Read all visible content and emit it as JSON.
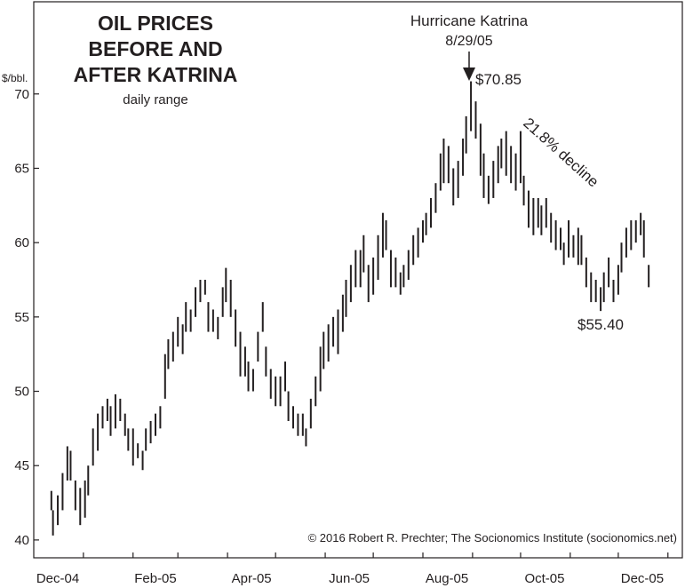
{
  "chart_data": {
    "type": "range",
    "title": [
      "OIL PRICES",
      "BEFORE AND",
      "AFTER KATRINA"
    ],
    "subtitle": "daily range",
    "y_label": "$/bbl.",
    "annotations": {
      "event": "Hurricane Katrina",
      "event_date": "8/29/05",
      "peak": "$70.85",
      "trough": "$55.40",
      "decline": "21.8% decline"
    },
    "credit": "© 2016 Robert R. Prechter; The Socionomics Institute (socionomics.net)",
    "color": "#231f20",
    "xlim": [
      0,
      405
    ],
    "ylim": [
      38.8,
      76.2
    ],
    "yticks": [
      40,
      45,
      50,
      55,
      60,
      65,
      70
    ],
    "xticks": [
      {
        "value": 15,
        "label": "Dec-04"
      },
      {
        "value": 76,
        "label": "Feb-05"
      },
      {
        "value": 136,
        "label": "Apr-05"
      },
      {
        "value": 197,
        "label": "Jun-05"
      },
      {
        "value": 258,
        "label": "Aug-05"
      },
      {
        "value": 319,
        "label": "Oct-05"
      },
      {
        "value": 380,
        "label": "Dec-05"
      }
    ],
    "xminorticks": [
      31,
      62,
      90,
      121,
      151,
      182,
      212,
      243,
      274,
      304,
      335,
      365,
      396
    ],
    "x": [
      11,
      12,
      15,
      18,
      21,
      23,
      26,
      29,
      32,
      34,
      37,
      40,
      43,
      46,
      48,
      51,
      54,
      57,
      59,
      62,
      65,
      68,
      70,
      73,
      76,
      79,
      82,
      84,
      87,
      90,
      93,
      95,
      98,
      101,
      104,
      107,
      109,
      112,
      115,
      118,
      120,
      123,
      126,
      129,
      132,
      134,
      137,
      140,
      143,
      145,
      148,
      151,
      154,
      157,
      159,
      162,
      165,
      168,
      170,
      173,
      176,
      179,
      181,
      184,
      187,
      190,
      193,
      195,
      198,
      201,
      204,
      206,
      209,
      212,
      215,
      218,
      220,
      223,
      226,
      229,
      231,
      234,
      237,
      240,
      243,
      245,
      248,
      251,
      254,
      256,
      259,
      262,
      265,
      268,
      270,
      273,
      276,
      279,
      281,
      284,
      287,
      290,
      292,
      295,
      298,
      301,
      304,
      306,
      309,
      312,
      315,
      317,
      320,
      323,
      326,
      329,
      331,
      334,
      337,
      340,
      342,
      345,
      348,
      351,
      354,
      356,
      359,
      362,
      365,
      367,
      370,
      373,
      376,
      379,
      381,
      384
    ],
    "low": [
      42,
      40.3,
      41,
      42,
      44,
      44,
      42,
      41,
      41.5,
      43,
      45,
      46,
      47.5,
      48,
      47,
      47.5,
      48,
      47,
      46,
      45,
      45.5,
      44.7,
      46,
      46.5,
      47,
      47.5,
      49.5,
      51.5,
      52,
      53,
      52.5,
      54,
      54,
      55,
      56,
      56.5,
      54,
      54,
      53.5,
      55,
      56,
      55,
      53,
      51,
      51,
      50,
      50,
      52,
      54,
      51,
      49.5,
      49,
      49,
      50,
      48,
      47.5,
      47,
      47,
      46.3,
      47.5,
      49,
      50,
      51.5,
      52,
      53,
      52.5,
      54,
      55,
      56,
      57,
      57,
      58,
      56,
      56.5,
      57.5,
      59,
      59.5,
      57,
      57,
      56.5,
      57,
      57.5,
      58.5,
      59,
      60,
      60.5,
      61,
      62,
      63.5,
      64,
      64,
      62.5,
      63,
      64.5,
      66,
      67.5,
      67,
      64.5,
      63,
      62.6,
      63,
      64,
      65,
      64.5,
      64,
      63.5,
      64,
      62.5,
      61,
      60.5,
      61,
      60.5,
      61,
      60,
      59.5,
      59.5,
      58.5,
      59,
      59,
      58.5,
      58.5,
      57,
      56,
      56,
      55.4,
      56,
      57,
      56,
      56.5,
      58,
      59,
      59.5,
      60,
      60.5,
      59,
      57
    ],
    "high": [
      43.3,
      42,
      43,
      44.5,
      46.3,
      46,
      44,
      43.5,
      44,
      45,
      47.5,
      48.5,
      49,
      49.5,
      49,
      49.8,
      49.5,
      48.5,
      47.5,
      47.5,
      46.5,
      46,
      47.5,
      48,
      48.5,
      49,
      52.5,
      53.5,
      54,
      55,
      54.5,
      56,
      55.5,
      57,
      57.5,
      57.5,
      56,
      55.5,
      55,
      57,
      58.3,
      57.5,
      55.5,
      54,
      53,
      52,
      51.5,
      54,
      56,
      53,
      51.5,
      51,
      51,
      52,
      50,
      49,
      48.5,
      48.5,
      47.5,
      49.5,
      51,
      53,
      54,
      54.5,
      55,
      55.5,
      56.5,
      57.5,
      58.5,
      59.5,
      59.5,
      60.5,
      58.5,
      59,
      60.5,
      62,
      61.5,
      59.5,
      59,
      58,
      58.5,
      59.5,
      60.5,
      61,
      61.5,
      62,
      63,
      64,
      66,
      67,
      66.5,
      65,
      65.5,
      67,
      68.5,
      70.85,
      69.5,
      68,
      66,
      64.5,
      65.5,
      66.5,
      67,
      67.5,
      66.5,
      66,
      67.5,
      64.5,
      63.5,
      63,
      63,
      62.5,
      63,
      62,
      61.5,
      61,
      60,
      61.5,
      60.5,
      61,
      60.5,
      59,
      58,
      57.5,
      57,
      58,
      59,
      57.5,
      58.5,
      60,
      61,
      61.5,
      61.5,
      62,
      61.5,
      58.5
    ]
  }
}
